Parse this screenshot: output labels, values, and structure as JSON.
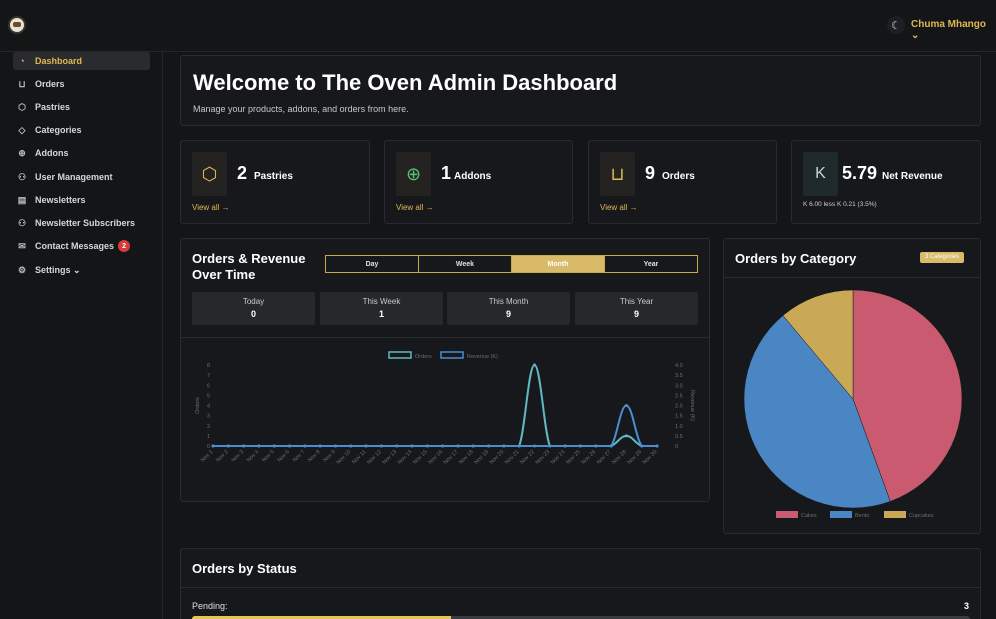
{
  "header": {
    "user_name": "Chuma Mhango ⌄"
  },
  "sidebar": {
    "items": [
      {
        "label": "Dashboard",
        "icon": "dashboard-icon"
      },
      {
        "label": "Orders",
        "icon": "cart-icon"
      },
      {
        "label": "Pastries",
        "icon": "box-icon"
      },
      {
        "label": "Categories",
        "icon": "tag-icon"
      },
      {
        "label": "Addons",
        "icon": "plus-circle-icon"
      },
      {
        "label": "User Management",
        "icon": "users-icon"
      },
      {
        "label": "Newsletters",
        "icon": "newspaper-icon"
      },
      {
        "label": "Newsletter Subscribers",
        "icon": "users-icon"
      },
      {
        "label": "Contact Messages",
        "icon": "envelope-icon",
        "badge": "2"
      },
      {
        "label": "Settings ⌄",
        "icon": "gear-icon"
      }
    ]
  },
  "welcome": {
    "title": "Welcome to The Oven Admin Dashboard",
    "subtitle": "Manage your products, addons, and orders from here."
  },
  "stats": [
    {
      "value": "2",
      "label": "Pastries",
      "link": "View all →"
    },
    {
      "value": "1",
      "label": "Addons",
      "link": "View all →"
    },
    {
      "value": "9",
      "label": "Orders",
      "link": "View all →"
    },
    {
      "value": "5.79",
      "label": "Net Revenue",
      "icon_text": "K",
      "sub": "K 6.00 less K 0.21 (3.5%)"
    }
  ],
  "orders_revenue": {
    "title_line1": "Orders & Revenue",
    "title_line2": "Over Time",
    "toggle": [
      "Day",
      "Week",
      "Month",
      "Year"
    ],
    "active_toggle": "Month",
    "periods": [
      {
        "label": "Today",
        "value": "0"
      },
      {
        "label": "This Week",
        "value": "1"
      },
      {
        "label": "This Month",
        "value": "9"
      },
      {
        "label": "This Year",
        "value": "9"
      }
    ]
  },
  "category": {
    "title": "Orders by Category",
    "badge": "3 Categories"
  },
  "status": {
    "title": "Orders by Status",
    "rows": [
      {
        "label": "Pending:",
        "value": "3",
        "fraction": 0.333
      }
    ]
  },
  "colors": {
    "accent": "#e0b953",
    "orders_line": "#5fb8c2",
    "revenue_line": "#4a8ed1",
    "cakes": "#c95a6f",
    "bento": "#4a86c4",
    "cupcakes": "#c9a955"
  },
  "chart_data": [
    {
      "type": "line",
      "x": [
        "Nov 1",
        "Nov 2",
        "Nov 3",
        "Nov 4",
        "Nov 5",
        "Nov 6",
        "Nov 7",
        "Nov 8",
        "Nov 9",
        "Nov 10",
        "Nov 11",
        "Nov 12",
        "Nov 13",
        "Nov 14",
        "Nov 15",
        "Nov 16",
        "Nov 17",
        "Nov 18",
        "Nov 19",
        "Nov 20",
        "Nov 21",
        "Nov 22",
        "Nov 23",
        "Nov 24",
        "Nov 25",
        "Nov 26",
        "Nov 27",
        "Nov 28",
        "Nov 29",
        "Nov 30"
      ],
      "series": [
        {
          "name": "Orders",
          "axis": "left",
          "values": [
            0,
            0,
            0,
            0,
            0,
            0,
            0,
            0,
            0,
            0,
            0,
            0,
            0,
            0,
            0,
            0,
            0,
            0,
            0,
            0,
            0,
            8,
            0,
            0,
            0,
            0,
            0,
            1,
            0,
            0
          ]
        },
        {
          "name": "Revenue (K)",
          "axis": "right",
          "values": [
            0,
            0,
            0,
            0,
            0,
            0,
            0,
            0,
            0,
            0,
            0,
            0,
            0,
            0,
            0,
            0,
            0,
            0,
            0,
            0,
            0,
            0,
            0,
            0,
            0,
            0,
            0,
            2,
            0,
            0
          ]
        }
      ],
      "ylabel": "Orders",
      "y2label": "Revenue (K)",
      "ylim": [
        0,
        8
      ],
      "yticks": [
        "0",
        "1",
        "2",
        "3",
        "4",
        "5",
        "6",
        "7",
        "8"
      ],
      "y2lim": [
        0,
        4
      ],
      "y2ticks": [
        "0",
        "0.5",
        "1.0",
        "1.5",
        "2.0",
        "2.5",
        "3.0",
        "3.5",
        "4.0"
      ],
      "legend_position": "top-center",
      "grid": false
    },
    {
      "type": "pie",
      "categories": [
        "Cakes",
        "Bento",
        "Cupcakes"
      ],
      "values": [
        4,
        4,
        1
      ],
      "legend_position": "bottom"
    }
  ]
}
